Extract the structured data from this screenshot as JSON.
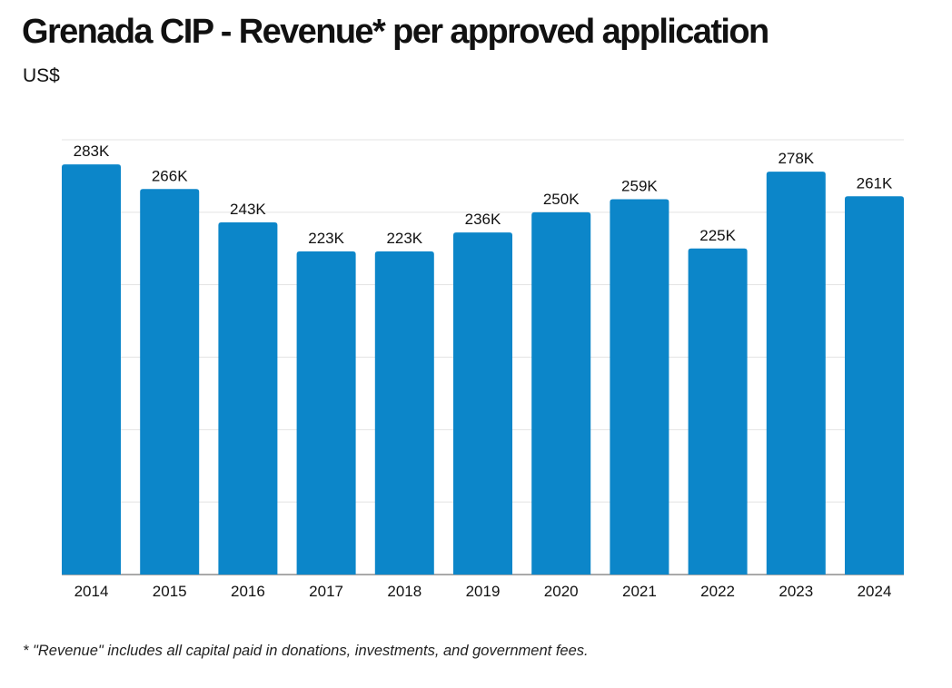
{
  "header": {
    "title": "Grenada CIP - Revenue* per approved application",
    "subtitle": "US$"
  },
  "footnote": "* \"Revenue\" includes all capital paid in donations, investments, and government fees.",
  "colors": {
    "bar": "#0c86c9",
    "gridline": "#e3e3e3",
    "axis": "#555555",
    "text": "#111111"
  },
  "chart_data": {
    "type": "bar",
    "title": "Grenada CIP - Revenue* per approved application",
    "ylabel": "US$",
    "xlabel": "",
    "categories": [
      "2014",
      "2015",
      "2016",
      "2017",
      "2018",
      "2019",
      "2020",
      "2021",
      "2022",
      "2023",
      "2024"
    ],
    "values": [
      283,
      266,
      243,
      223,
      223,
      236,
      250,
      259,
      225,
      278,
      261
    ],
    "value_labels": [
      "283K",
      "266K",
      "243K",
      "223K",
      "223K",
      "236K",
      "250K",
      "259K",
      "225K",
      "278K",
      "261K"
    ],
    "unit": "thousand US$",
    "ylim": [
      0,
      300
    ],
    "gridlines": [
      50,
      100,
      150,
      200,
      250,
      300
    ],
    "grid": true,
    "legend": "none"
  }
}
